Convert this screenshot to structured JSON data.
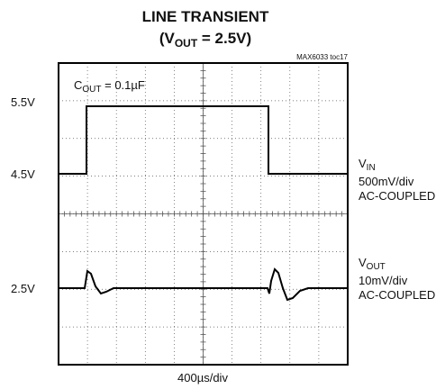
{
  "figure": {
    "title": "LINE TRANSIENT",
    "subtitle": {
      "open": "(V",
      "sub": "OUT",
      "rest": " = 2.5V)"
    },
    "tag": "MAX6033 toc17",
    "annotation": {
      "main": "C",
      "sub": "OUT",
      "rest": " = 0.1µF"
    },
    "left_labels": [
      "5.5V",
      "4.5V",
      "2.5V"
    ],
    "vin_label": {
      "main": "V",
      "sub": "IN",
      "scale": "500mV/div",
      "coupling": "AC-COUPLED"
    },
    "vout_label": {
      "main": "V",
      "sub": "OUT",
      "scale": "10mV/div",
      "coupling": "AC-COUPLED"
    },
    "x_scale": "400µs/div"
  }
}
